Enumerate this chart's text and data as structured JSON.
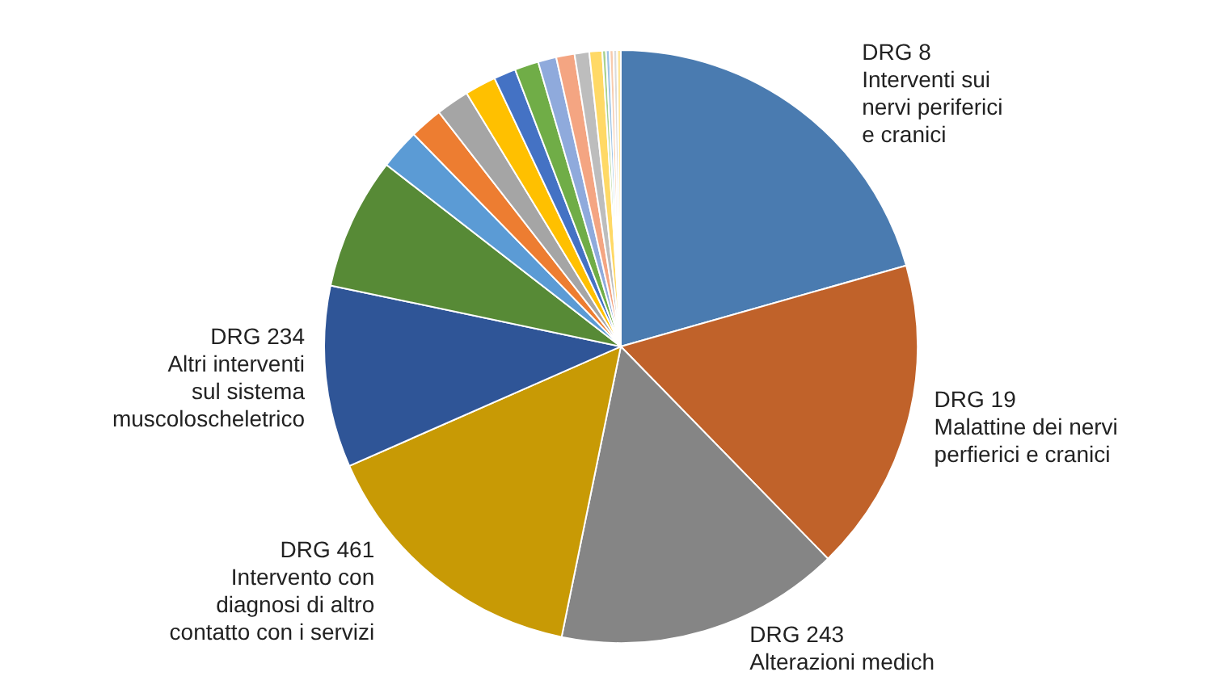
{
  "chart_data": {
    "type": "pie",
    "categories": [
      "DRG 8\nInterventi sui\nnervi periferici\ne cranici",
      "DRG 19\nMalattine dei nervi\nperfierici e cranici",
      "DRG 243\nAlterazioni medich",
      "DRG 461\nIntervento con\ndiagnosi di altro\ncontatto con i servizi",
      "DRG 234\nAltri interventi\nsul sistema\nmuscoloscheletrico",
      null,
      null,
      null,
      null,
      null,
      null,
      null,
      null,
      null,
      null,
      null,
      null,
      null,
      null,
      null,
      null
    ],
    "values": [
      20.6,
      17.1,
      15.5,
      15.2,
      9.9,
      7.2,
      2.2,
      1.8,
      1.8,
      1.7,
      1.2,
      1.3,
      1.0,
      1.0,
      0.8,
      0.7,
      0.2,
      0.2,
      0.2,
      0.2,
      0.2
    ],
    "colors": [
      "#4a7bb0",
      "#c0622a",
      "#858585",
      "#c89a05",
      "#2f5597",
      "#578a36",
      "#5b9bd5",
      "#ed7d31",
      "#a5a5a5",
      "#ffc000",
      "#4472c4",
      "#70ad47",
      "#8faadc",
      "#f4a582",
      "#bdbdbd",
      "#ffd966",
      "#a9d18e",
      "#9dc3e6",
      "#f8cbad",
      "#dbdbdb",
      "#ffe699"
    ],
    "legend": false
  }
}
